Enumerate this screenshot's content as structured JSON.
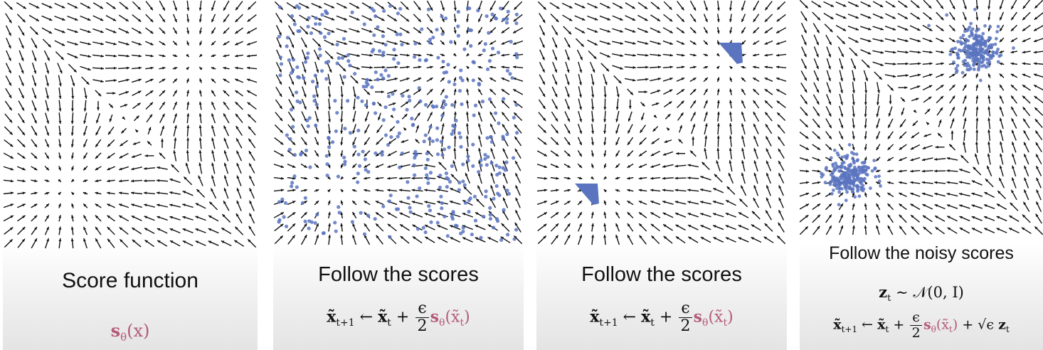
{
  "colors": {
    "arrow": "#111111",
    "dot": "#5a74bf",
    "score": "#b55a78"
  },
  "panels": [
    {
      "caption": "Score function",
      "eq": {
        "score": "s",
        "sub": "θ",
        "arg": "(x)"
      }
    },
    {
      "caption": "Follow the scores",
      "eq": {
        "lhs": "x̃",
        "lhs_sub": "t+1",
        "arrow": "←",
        "x": "x̃",
        "x_sub": "t",
        "plus": "+",
        "num": "ϵ",
        "den": "2",
        "score": "s",
        "score_sub": "θ",
        "arg_open": "(x̃",
        "arg_sub": "t",
        "arg_close": ")"
      }
    },
    {
      "caption": "Follow the scores",
      "eq": {
        "lhs": "x̃",
        "lhs_sub": "t+1",
        "arrow": "←",
        "x": "x̃",
        "x_sub": "t",
        "plus": "+",
        "num": "ϵ",
        "den": "2",
        "score": "s",
        "score_sub": "θ",
        "arg_open": "(x̃",
        "arg_sub": "t",
        "arg_close": ")"
      }
    },
    {
      "caption": "Follow the noisy scores",
      "eq_top": {
        "z": "z",
        "z_sub": "t",
        "sim": "∼",
        "dist": "𝒩(0, I)"
      },
      "eq": {
        "lhs": "x̃",
        "lhs_sub": "t+1",
        "arrow": "←",
        "x": "x̃",
        "x_sub": "t",
        "plus": "+",
        "num": "ϵ",
        "den": "2",
        "score": "s",
        "score_sub": "θ",
        "arg_open": "(x̃",
        "arg_sub": "t",
        "arg_close": ")",
        "plus2": "+",
        "sqrt": "√ϵ",
        "z": "z",
        "z_sub": "t"
      }
    }
  ]
}
